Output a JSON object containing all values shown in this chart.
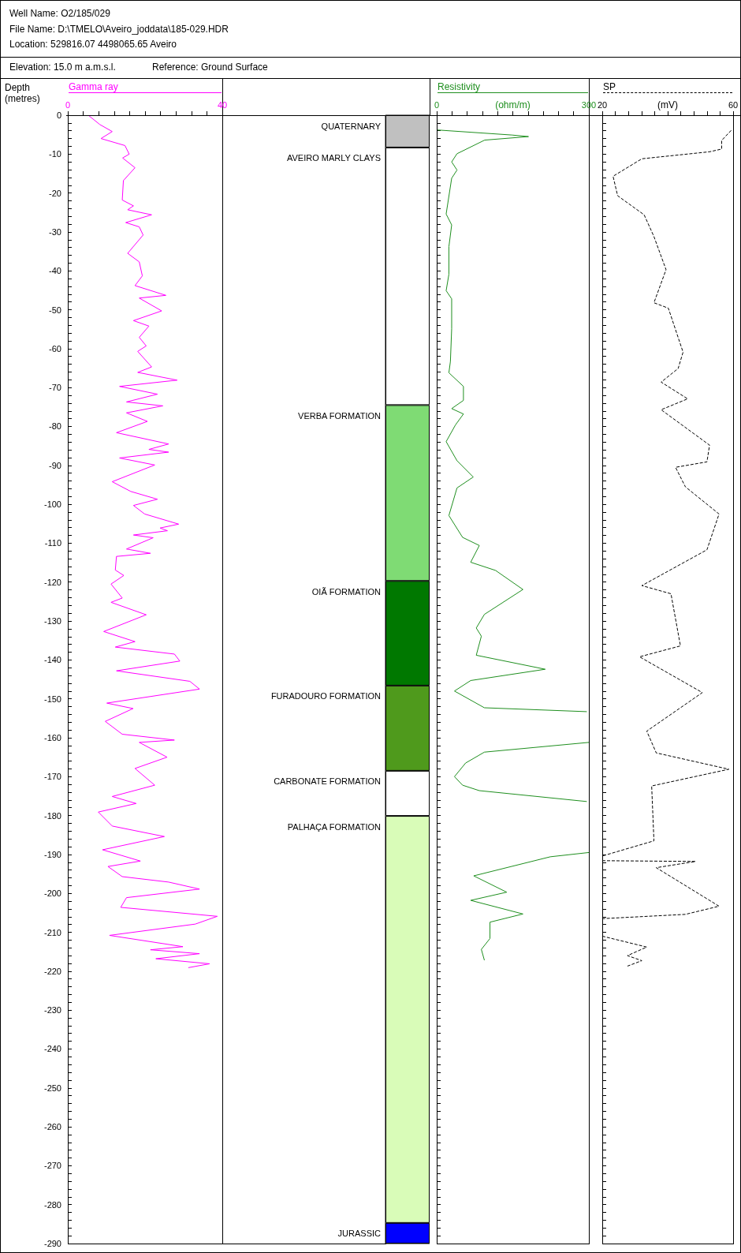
{
  "chart_data": [
    {
      "type": "line",
      "title": "Well Name: O2/185/029",
      "annotations": [
        "File Name: D:\\TMELO\\Aveiro_joddata\\185-029.HDR",
        "Location: 529816.07 4498065.65 Aveiro",
        "Elevation: 15.0 m a.m.s.l.",
        "Reference: Ground Surface"
      ],
      "xlabel": "Gamma ray",
      "ylabel": "Depth (metres)",
      "xlim": [
        0,
        40
      ],
      "xticks": [
        0,
        {
          "value": 4,
          "label": null
        },
        {
          "value": 8,
          "label": null
        },
        {
          "value": 12,
          "label": null
        },
        {
          "value": 16,
          "label": null
        },
        {
          "value": 20,
          "label": null
        },
        {
          "value": 24,
          "label": null
        },
        {
          "value": 28,
          "label": null
        },
        {
          "value": 32,
          "label": null
        },
        {
          "value": 36,
          "label": null
        },
        40
      ],
      "ylim": [
        -290,
        0
      ],
      "yticks": [
        0,
        {
          "value": -2,
          "label": null
        },
        {
          "value": -4,
          "label": null
        },
        {
          "value": -6,
          "label": null
        },
        {
          "value": -8,
          "label": null
        },
        -10,
        {
          "value": -12,
          "label": null
        },
        {
          "value": -14,
          "label": null
        },
        {
          "value": -16,
          "label": null
        },
        {
          "value": -18,
          "label": null
        },
        -20,
        {
          "value": -22,
          "label": null
        },
        {
          "value": -24,
          "label": null
        },
        {
          "value": -26,
          "label": null
        },
        {
          "value": -28,
          "label": null
        },
        -30,
        {
          "value": -32,
          "label": null
        },
        {
          "value": -34,
          "label": null
        },
        {
          "value": -36,
          "label": null
        },
        {
          "value": -38,
          "label": null
        },
        -40,
        {
          "value": -42,
          "label": null
        },
        {
          "value": -44,
          "label": null
        },
        {
          "value": -46,
          "label": null
        },
        {
          "value": -48,
          "label": null
        },
        -50,
        {
          "value": -52,
          "label": null
        },
        {
          "value": -54,
          "label": null
        },
        {
          "value": -56,
          "label": null
        },
        {
          "value": -58,
          "label": null
        },
        -60,
        {
          "value": -62,
          "label": null
        },
        {
          "value": -64,
          "label": null
        },
        {
          "value": -66,
          "label": null
        },
        {
          "value": -68,
          "label": null
        },
        -70,
        {
          "value": -72,
          "label": null
        },
        {
          "value": -74,
          "label": null
        },
        {
          "value": -76,
          "label": null
        },
        {
          "value": -78,
          "label": null
        },
        -80,
        {
          "value": -82,
          "label": null
        },
        {
          "value": -84,
          "label": null
        },
        {
          "value": -86,
          "label": null
        },
        {
          "value": -88,
          "label": null
        },
        -90,
        {
          "value": -92,
          "label": null
        },
        {
          "value": -94,
          "label": null
        },
        {
          "value": -96,
          "label": null
        },
        {
          "value": -98,
          "label": null
        },
        -100,
        {
          "value": -102,
          "label": null
        },
        {
          "value": -104,
          "label": null
        },
        {
          "value": -106,
          "label": null
        },
        {
          "value": -108,
          "label": null
        },
        -110,
        {
          "value": -112,
          "label": null
        },
        {
          "value": -114,
          "label": null
        },
        {
          "value": -116,
          "label": null
        },
        {
          "value": -118,
          "label": null
        },
        -120,
        {
          "value": -122,
          "label": null
        },
        {
          "value": -124,
          "label": null
        },
        {
          "value": -126,
          "label": null
        },
        {
          "value": -128,
          "label": null
        },
        -130,
        {
          "value": -132,
          "label": null
        },
        {
          "value": -134,
          "label": null
        },
        {
          "value": -136,
          "label": null
        },
        {
          "value": -138,
          "label": null
        },
        -140,
        {
          "value": -142,
          "label": null
        },
        {
          "value": -144,
          "label": null
        },
        {
          "value": -146,
          "label": null
        },
        {
          "value": -148,
          "label": null
        },
        -150,
        {
          "value": -152,
          "label": null
        },
        {
          "value": -154,
          "label": null
        },
        {
          "value": -156,
          "label": null
        },
        {
          "value": -158,
          "label": null
        },
        -160,
        {
          "value": -162,
          "label": null
        },
        {
          "value": -164,
          "label": null
        },
        {
          "value": -166,
          "label": null
        },
        {
          "value": -168,
          "label": null
        },
        -170,
        {
          "value": -172,
          "label": null
        },
        {
          "value": -174,
          "label": null
        },
        {
          "value": -176,
          "label": null
        },
        {
          "value": -178,
          "label": null
        },
        -180,
        {
          "value": -182,
          "label": null
        },
        {
          "value": -184,
          "label": null
        },
        {
          "value": -186,
          "label": null
        },
        {
          "value": -188,
          "label": null
        },
        -190,
        {
          "value": -192,
          "label": null
        },
        {
          "value": -194,
          "label": null
        },
        {
          "value": -196,
          "label": null
        },
        {
          "value": -198,
          "label": null
        },
        -200,
        {
          "value": -202,
          "label": null
        },
        {
          "value": -204,
          "label": null
        },
        {
          "value": -206,
          "label": null
        },
        {
          "value": -208,
          "label": null
        },
        -210,
        {
          "value": -212,
          "label": null
        },
        {
          "value": -214,
          "label": null
        },
        {
          "value": -216,
          "label": null
        },
        {
          "value": -218,
          "label": null
        },
        -220,
        {
          "value": -222,
          "label": null
        },
        {
          "value": -224,
          "label": null
        },
        {
          "value": -226,
          "label": null
        },
        {
          "value": -228,
          "label": null
        },
        -230,
        {
          "value": -232,
          "label": null
        },
        {
          "value": -234,
          "label": null
        },
        {
          "value": -236,
          "label": null
        },
        {
          "value": -238,
          "label": null
        },
        -240,
        {
          "value": -242,
          "label": null
        },
        {
          "value": -244,
          "label": null
        },
        {
          "value": -246,
          "label": null
        },
        {
          "value": -248,
          "label": null
        },
        -250,
        {
          "value": -252,
          "label": null
        },
        {
          "value": -254,
          "label": null
        },
        {
          "value": -256,
          "label": null
        },
        {
          "value": -258,
          "label": null
        },
        -260,
        {
          "value": -262,
          "label": null
        },
        {
          "value": -264,
          "label": null
        },
        {
          "value": -266,
          "label": null
        },
        {
          "value": -268,
          "label": null
        },
        -270,
        {
          "value": -272,
          "label": null
        },
        {
          "value": -274,
          "label": null
        },
        {
          "value": -276,
          "label": null
        },
        {
          "value": -278,
          "label": null
        },
        -280,
        {
          "value": -282,
          "label": null
        },
        {
          "value": -284,
          "label": null
        },
        {
          "value": -286,
          "label": null
        },
        {
          "value": -288,
          "label": null
        },
        -290
      ],
      "series": [
        {
          "color": "#ff00ff",
          "x": [
            5.3,
            8.3,
            11.5,
            8.6,
            14.8,
            15.9,
            14.2,
            17.4,
            14.4,
            14.1,
            17,
            15.5,
            21.7,
            15,
            18.5,
            19.5,
            15.5,
            18.5,
            19.3,
            17.4,
            25.4,
            18.5,
            24.3,
            17,
            21,
            18.5,
            20.3,
            18.1,
            21.7,
            18.1,
            28.3,
            13.4,
            23.2,
            15.2,
            24.6,
            15.2,
            20.6,
            12.6,
            26.1,
            21,
            26.1,
            13.4,
            22.5,
            11.5,
            16.3,
            23.2,
            17,
            19.9,
            28.7,
            23.9,
            25.8,
            17,
            22.1,
            15.2,
            21.4,
            12.6,
            12.3,
            14.5,
            11.2,
            14.1,
            11.2,
            20.3,
            9.3,
            17.4,
            12.3,
            27.6,
            29,
            12.6,
            31.6,
            34.1,
            10.1,
            16.9,
            9.7,
            14.1,
            27.6,
            18.5,
            25.7,
            17.4,
            22.5,
            11.5,
            17.7,
            7.9,
            11.5,
            25,
            9,
            18.8,
            10.4,
            14.1,
            26.1,
            34.1,
            15.2,
            13.7,
            38.7,
            33,
            10.8,
            29.8,
            21.4,
            34.1,
            22.8,
            36.7,
            31.2
          ],
          "values": [
            0,
            -2.4,
            -4.2,
            -6,
            -7.8,
            -10,
            -11,
            -13.5,
            -16.8,
            -21.8,
            -23.3,
            -24.3,
            -25.6,
            -27.6,
            -28.7,
            -30.8,
            -35.5,
            -37.7,
            -41.3,
            -43.8,
            -46.3,
            -47,
            -50.3,
            -52.8,
            -54.2,
            -57.1,
            -59.3,
            -60.7,
            -64.7,
            -66.1,
            -68.1,
            -69.7,
            -71.7,
            -73.7,
            -74.7,
            -76.5,
            -78.7,
            -81.6,
            -84.5,
            -85.9,
            -86.6,
            -88.1,
            -89.9,
            -94.2,
            -96.7,
            -98.7,
            -100.3,
            -102.5,
            -105.1,
            -106.1,
            -106.8,
            -107.9,
            -108.6,
            -111.5,
            -112.6,
            -113.4,
            -116.9,
            -118.3,
            -120.5,
            -124.1,
            -125.2,
            -128.4,
            -132.7,
            -135.3,
            -136.7,
            -138.5,
            -140.3,
            -142.8,
            -145.5,
            -147.5,
            -151.1,
            -152.5,
            -155.8,
            -159.1,
            -160.6,
            -161.2,
            -165,
            -167.9,
            -172.2,
            -175.1,
            -176.9,
            -179.1,
            -182.7,
            -185.4,
            -188.8,
            -191.7,
            -193.1,
            -195.7,
            -197.1,
            -198.9,
            -201.1,
            -203.6,
            -205.9,
            -207.9,
            -210.8,
            -213.7,
            -214.5,
            -215.5,
            -216.8,
            -218.1,
            -219.1
          ]
        }
      ]
    },
    {
      "type": "bar",
      "stacked": true,
      "categories": [
        null
      ],
      "ylim": [
        -290,
        0
      ],
      "tick_labels": false,
      "series": [
        {
          "name": "QUATERNARY",
          "color": "#c0c0c0",
          "values": [
            -8.3
          ]
        },
        {
          "name": "AVEIRO MARLY CLAYS",
          "color": "#ffffff",
          "values": [
            -66.2
          ]
        },
        {
          "name": "VERBA FORMATION",
          "color": "#7fdb74",
          "values": [
            -45.2
          ]
        },
        {
          "name": "OIÃ FORMATION",
          "color": "#007800",
          "values": [
            -26.9
          ]
        },
        {
          "name": "FURADOURO FORMATION",
          "color": "#4f9a1c",
          "values": [
            -21.9
          ]
        },
        {
          "name": "CARBONATE FORMATION",
          "color": "#ffffff",
          "values": [
            -11.6
          ]
        },
        {
          "name": "PALHAÇA FORMATION",
          "color": "#d9fcb8",
          "values": [
            -104.6
          ]
        },
        {
          "name": "JURASSIC",
          "color": "#0000ff",
          "values": [
            -5.3
          ]
        }
      ]
    },
    {
      "type": "line",
      "xlabel": "Resistivity",
      "subtitle": "(ohm/m)",
      "tick_labels": "x",
      "xlim": [
        0,
        300
      ],
      "xticks": [
        0,
        {
          "value": 30,
          "label": null
        },
        {
          "value": 60,
          "label": null
        },
        {
          "value": 90,
          "label": null
        },
        {
          "value": 120,
          "label": null
        },
        {
          "value": 150,
          "label": null
        },
        {
          "value": 180,
          "label": null
        },
        {
          "value": 210,
          "label": null
        },
        {
          "value": 240,
          "label": null
        },
        {
          "value": 270,
          "label": null
        },
        300
      ],
      "ylim": [
        -290,
        0
      ],
      "yticks": [
        0,
        {
          "value": -2,
          "label": null
        },
        {
          "value": -4,
          "label": null
        },
        {
          "value": -6,
          "label": null
        },
        {
          "value": -8,
          "label": null
        },
        -10,
        {
          "value": -12,
          "label": null
        },
        {
          "value": -14,
          "label": null
        },
        {
          "value": -16,
          "label": null
        },
        {
          "value": -18,
          "label": null
        },
        -20,
        {
          "value": -22,
          "label": null
        },
        {
          "value": -24,
          "label": null
        },
        {
          "value": -26,
          "label": null
        },
        {
          "value": -28,
          "label": null
        },
        -30,
        {
          "value": -32,
          "label": null
        },
        {
          "value": -34,
          "label": null
        },
        {
          "value": -36,
          "label": null
        },
        {
          "value": -38,
          "label": null
        },
        -40,
        {
          "value": -42,
          "label": null
        },
        {
          "value": -44,
          "label": null
        },
        {
          "value": -46,
          "label": null
        },
        {
          "value": -48,
          "label": null
        },
        -50,
        {
          "value": -52,
          "label": null
        },
        {
          "value": -54,
          "label": null
        },
        {
          "value": -56,
          "label": null
        },
        {
          "value": -58,
          "label": null
        },
        -60,
        {
          "value": -62,
          "label": null
        },
        {
          "value": -64,
          "label": null
        },
        {
          "value": -66,
          "label": null
        },
        {
          "value": -68,
          "label": null
        },
        -70,
        {
          "value": -72,
          "label": null
        },
        {
          "value": -74,
          "label": null
        },
        {
          "value": -76,
          "label": null
        },
        {
          "value": -78,
          "label": null
        },
        -80,
        {
          "value": -82,
          "label": null
        },
        {
          "value": -84,
          "label": null
        },
        {
          "value": -86,
          "label": null
        },
        {
          "value": -88,
          "label": null
        },
        -90,
        {
          "value": -92,
          "label": null
        },
        {
          "value": -94,
          "label": null
        },
        {
          "value": -96,
          "label": null
        },
        {
          "value": -98,
          "label": null
        },
        -100,
        {
          "value": -102,
          "label": null
        },
        {
          "value": -104,
          "label": null
        },
        {
          "value": -106,
          "label": null
        },
        {
          "value": -108,
          "label": null
        },
        -110,
        {
          "value": -112,
          "label": null
        },
        {
          "value": -114,
          "label": null
        },
        {
          "value": -116,
          "label": null
        },
        {
          "value": -118,
          "label": null
        },
        -120,
        {
          "value": -122,
          "label": null
        },
        {
          "value": -124,
          "label": null
        },
        {
          "value": -126,
          "label": null
        },
        {
          "value": -128,
          "label": null
        },
        -130,
        {
          "value": -132,
          "label": null
        },
        {
          "value": -134,
          "label": null
        },
        {
          "value": -136,
          "label": null
        },
        {
          "value": -138,
          "label": null
        },
        -140,
        {
          "value": -142,
          "label": null
        },
        {
          "value": -144,
          "label": null
        },
        {
          "value": -146,
          "label": null
        },
        {
          "value": -148,
          "label": null
        },
        -150,
        {
          "value": -152,
          "label": null
        },
        {
          "value": -154,
          "label": null
        },
        {
          "value": -156,
          "label": null
        },
        {
          "value": -158,
          "label": null
        },
        -160,
        {
          "value": -162,
          "label": null
        },
        {
          "value": -164,
          "label": null
        },
        {
          "value": -166,
          "label": null
        },
        {
          "value": -168,
          "label": null
        },
        -170,
        {
          "value": -172,
          "label": null
        },
        {
          "value": -174,
          "label": null
        },
        {
          "value": -176,
          "label": null
        },
        {
          "value": -178,
          "label": null
        },
        -180,
        {
          "value": -182,
          "label": null
        },
        {
          "value": -184,
          "label": null
        },
        {
          "value": -186,
          "label": null
        },
        {
          "value": -188,
          "label": null
        },
        -190,
        {
          "value": -192,
          "label": null
        },
        {
          "value": -194,
          "label": null
        },
        {
          "value": -196,
          "label": null
        },
        {
          "value": -198,
          "label": null
        },
        -200,
        {
          "value": -202,
          "label": null
        },
        {
          "value": -204,
          "label": null
        },
        {
          "value": -206,
          "label": null
        },
        {
          "value": -208,
          "label": null
        },
        -210,
        {
          "value": -212,
          "label": null
        },
        {
          "value": -214,
          "label": null
        },
        {
          "value": -216,
          "label": null
        },
        {
          "value": -218,
          "label": null
        },
        -220,
        {
          "value": -222,
          "label": null
        },
        {
          "value": -224,
          "label": null
        },
        {
          "value": -226,
          "label": null
        },
        {
          "value": -228,
          "label": null
        },
        -230,
        {
          "value": -232,
          "label": null
        },
        {
          "value": -234,
          "label": null
        },
        {
          "value": -236,
          "label": null
        },
        {
          "value": -238,
          "label": null
        },
        -240,
        {
          "value": -242,
          "label": null
        },
        {
          "value": -244,
          "label": null
        },
        {
          "value": -246,
          "label": null
        },
        {
          "value": -248,
          "label": null
        },
        -250,
        {
          "value": -252,
          "label": null
        },
        {
          "value": -254,
          "label": null
        },
        {
          "value": -256,
          "label": null
        },
        {
          "value": -258,
          "label": null
        },
        -260,
        {
          "value": -262,
          "label": null
        },
        {
          "value": -264,
          "label": null
        },
        {
          "value": -266,
          "label": null
        },
        {
          "value": -268,
          "label": null
        },
        -270,
        {
          "value": -272,
          "label": null
        },
        {
          "value": -274,
          "label": null
        },
        {
          "value": -276,
          "label": null
        },
        {
          "value": -278,
          "label": null
        },
        -280,
        {
          "value": -282,
          "label": null
        },
        {
          "value": -284,
          "label": null
        },
        {
          "value": -286,
          "label": null
        },
        {
          "value": -288,
          "label": null
        },
        -290
      ],
      "series": [
        {
          "color": "#1f8f1f",
          "x": [
            1.5,
            148.7,
            181,
            94.6,
            40,
            29.5,
            40,
            29.5,
            18.6,
            29.5,
            24,
            24,
            18.6,
            29.5,
            29.5,
            27,
            24,
            52.7,
            52.7,
            29.5,
            52.7,
            37,
            18.6,
            40,
            72,
            40,
            24,
            51,
            84,
            67,
            116,
            170,
            94,
            78,
            88,
            78,
            214,
            67,
            35,
            94,
            296,
            null,
            300,
            94,
            57,
            35,
            51,
            84,
            296,
            null,
            300,
            224,
            73,
            138,
            67,
            170,
            105,
            105,
            88,
            94
          ],
          "values": [
            -3.8,
            -5.1,
            -5.5,
            -6.4,
            -9.9,
            -12,
            -14.1,
            -16.2,
            -25.4,
            -28.2,
            -33.8,
            -40.9,
            -45.1,
            -47.2,
            -54.9,
            -63.3,
            -66.2,
            -69.7,
            -73.3,
            -75.4,
            -76.8,
            -79.6,
            -83.9,
            -88.8,
            -93,
            -95.8,
            -102.9,
            -108.5,
            -110.6,
            -114.9,
            -117,
            -121.9,
            -128.3,
            -131.8,
            -133.9,
            -138.8,
            -142.4,
            -145.3,
            -148,
            -152.3,
            -153.3,
            null,
            -161.2,
            -163.7,
            -166.5,
            -170,
            -172.2,
            -173.6,
            -176.4,
            null,
            -189.5,
            -190.6,
            -195.5,
            -199.7,
            -201.8,
            -205.3,
            -207.4,
            -211.6,
            -214.4,
            -217.2
          ]
        }
      ]
    },
    {
      "type": "line",
      "xlabel": "SP",
      "subtitle": "(mV)",
      "tick_labels": "x",
      "line_style": "dashed",
      "xlim": [
        20,
        60
      ],
      "xticks": [
        20,
        {
          "value": 24,
          "label": null
        },
        {
          "value": 28,
          "label": null
        },
        {
          "value": 32,
          "label": null
        },
        {
          "value": 36,
          "label": null
        },
        {
          "value": 40,
          "label": null
        },
        {
          "value": 44,
          "label": null
        },
        {
          "value": 48,
          "label": null
        },
        {
          "value": 52,
          "label": null
        },
        {
          "value": 56,
          "label": null
        },
        60
      ],
      "ylim": [
        -290,
        0
      ],
      "yticks": [
        0,
        {
          "value": -2,
          "label": null
        },
        {
          "value": -4,
          "label": null
        },
        {
          "value": -6,
          "label": null
        },
        {
          "value": -8,
          "label": null
        },
        -10,
        {
          "value": -12,
          "label": null
        },
        {
          "value": -14,
          "label": null
        },
        {
          "value": -16,
          "label": null
        },
        {
          "value": -18,
          "label": null
        },
        -20,
        {
          "value": -22,
          "label": null
        },
        {
          "value": -24,
          "label": null
        },
        {
          "value": -26,
          "label": null
        },
        {
          "value": -28,
          "label": null
        },
        -30,
        {
          "value": -32,
          "label": null
        },
        {
          "value": -34,
          "label": null
        },
        {
          "value": -36,
          "label": null
        },
        {
          "value": -38,
          "label": null
        },
        -40,
        {
          "value": -42,
          "label": null
        },
        {
          "value": -44,
          "label": null
        },
        {
          "value": -46,
          "label": null
        },
        {
          "value": -48,
          "label": null
        },
        -50,
        {
          "value": -52,
          "label": null
        },
        {
          "value": -54,
          "label": null
        },
        {
          "value": -56,
          "label": null
        },
        {
          "value": -58,
          "label": null
        },
        -60,
        {
          "value": -62,
          "label": null
        },
        {
          "value": -64,
          "label": null
        },
        {
          "value": -66,
          "label": null
        },
        {
          "value": -68,
          "label": null
        },
        -70,
        {
          "value": -72,
          "label": null
        },
        {
          "value": -74,
          "label": null
        },
        {
          "value": -76,
          "label": null
        },
        {
          "value": -78,
          "label": null
        },
        -80,
        {
          "value": -82,
          "label": null
        },
        {
          "value": -84,
          "label": null
        },
        {
          "value": -86,
          "label": null
        },
        {
          "value": -88,
          "label": null
        },
        -90,
        {
          "value": -92,
          "label": null
        },
        {
          "value": -94,
          "label": null
        },
        {
          "value": -96,
          "label": null
        },
        {
          "value": -98,
          "label": null
        },
        -100,
        {
          "value": -102,
          "label": null
        },
        {
          "value": -104,
          "label": null
        },
        {
          "value": -106,
          "label": null
        },
        {
          "value": -108,
          "label": null
        },
        -110,
        {
          "value": -112,
          "label": null
        },
        {
          "value": -114,
          "label": null
        },
        {
          "value": -116,
          "label": null
        },
        {
          "value": -118,
          "label": null
        },
        -120,
        {
          "value": -122,
          "label": null
        },
        {
          "value": -124,
          "label": null
        },
        {
          "value": -126,
          "label": null
        },
        {
          "value": -128,
          "label": null
        },
        -130,
        {
          "value": -132,
          "label": null
        },
        {
          "value": -134,
          "label": null
        },
        {
          "value": -136,
          "label": null
        },
        {
          "value": -138,
          "label": null
        },
        -140,
        {
          "value": -142,
          "label": null
        },
        {
          "value": -144,
          "label": null
        },
        {
          "value": -146,
          "label": null
        },
        {
          "value": -148,
          "label": null
        },
        -150,
        {
          "value": -152,
          "label": null
        },
        {
          "value": -154,
          "label": null
        },
        {
          "value": -156,
          "label": null
        },
        {
          "value": -158,
          "label": null
        },
        -160,
        {
          "value": -162,
          "label": null
        },
        {
          "value": -164,
          "label": null
        },
        {
          "value": -166,
          "label": null
        },
        {
          "value": -168,
          "label": null
        },
        -170,
        {
          "value": -172,
          "label": null
        },
        {
          "value": -174,
          "label": null
        },
        {
          "value": -176,
          "label": null
        },
        {
          "value": -178,
          "label": null
        },
        -180,
        {
          "value": -182,
          "label": null
        },
        {
          "value": -184,
          "label": null
        },
        {
          "value": -186,
          "label": null
        },
        {
          "value": -188,
          "label": null
        },
        -190,
        {
          "value": -192,
          "label": null
        },
        {
          "value": -194,
          "label": null
        },
        {
          "value": -196,
          "label": null
        },
        {
          "value": -198,
          "label": null
        },
        -200,
        {
          "value": -202,
          "label": null
        },
        {
          "value": -204,
          "label": null
        },
        {
          "value": -206,
          "label": null
        },
        {
          "value": -208,
          "label": null
        },
        -210,
        {
          "value": -212,
          "label": null
        },
        {
          "value": -214,
          "label": null
        },
        {
          "value": -216,
          "label": null
        },
        {
          "value": -218,
          "label": null
        },
        -220,
        {
          "value": -222,
          "label": null
        },
        {
          "value": -224,
          "label": null
        },
        {
          "value": -226,
          "label": null
        },
        {
          "value": -228,
          "label": null
        },
        -230,
        {
          "value": -232,
          "label": null
        },
        {
          "value": -234,
          "label": null
        },
        {
          "value": -236,
          "label": null
        },
        {
          "value": -238,
          "label": null
        },
        -240,
        {
          "value": -242,
          "label": null
        },
        {
          "value": -244,
          "label": null
        },
        {
          "value": -246,
          "label": null
        },
        {
          "value": -248,
          "label": null
        },
        -250,
        {
          "value": -252,
          "label": null
        },
        {
          "value": -254,
          "label": null
        },
        {
          "value": -256,
          "label": null
        },
        {
          "value": -258,
          "label": null
        },
        -260,
        {
          "value": -262,
          "label": null
        },
        {
          "value": -264,
          "label": null
        },
        {
          "value": -266,
          "label": null
        },
        {
          "value": -268,
          "label": null
        },
        -270,
        {
          "value": -272,
          "label": null
        },
        {
          "value": -274,
          "label": null
        },
        {
          "value": -276,
          "label": null
        },
        {
          "value": -278,
          "label": null
        },
        -280,
        {
          "value": -282,
          "label": null
        },
        {
          "value": -284,
          "label": null
        },
        {
          "value": -286,
          "label": null
        },
        {
          "value": -288,
          "label": null
        },
        -290
      ],
      "series": [
        {
          "color": "#000000",
          "x": [
            59.4,
            56.5,
            56.5,
            52.8,
            32.1,
            23.3,
            24.7,
            32.8,
            35.8,
            39.5,
            35.8,
            40.2,
            44.7,
            43.2,
            38,
            46.1,
            38,
            52.8,
            52,
            42.4,
            45.4,
            55.7,
            52,
            32.1,
            41,
            43.9,
            31.4,
            50.6,
            33.6,
            36.5,
            58.7,
            35.1,
            35.8,
            20,
            null,
            20,
            48.5,
            36.5,
            55.7,
            45.4,
            20,
            null,
            20,
            33.6,
            27.7,
            32.1,
            27.7
          ],
          "values": [
            -3.9,
            -6.5,
            -8.7,
            -9.4,
            -11.2,
            -15.7,
            -20.7,
            -25.6,
            -31.2,
            -39.7,
            -48.2,
            -49.6,
            -60.9,
            -65.1,
            -68.6,
            -72.9,
            -75.7,
            -84.8,
            -89.1,
            -90.5,
            -95.5,
            -102.5,
            -111.7,
            -120.9,
            -123,
            -136.4,
            -139.2,
            -148.4,
            -158.3,
            -163.9,
            -168.1,
            -172.4,
            -186.5,
            -190.4,
            null,
            -191.6,
            -191.8,
            -193.4,
            -203.3,
            -205.4,
            -206.5,
            null,
            -211,
            -213.8,
            -216,
            -217.3,
            -218.7
          ]
        }
      ]
    }
  ]
}
